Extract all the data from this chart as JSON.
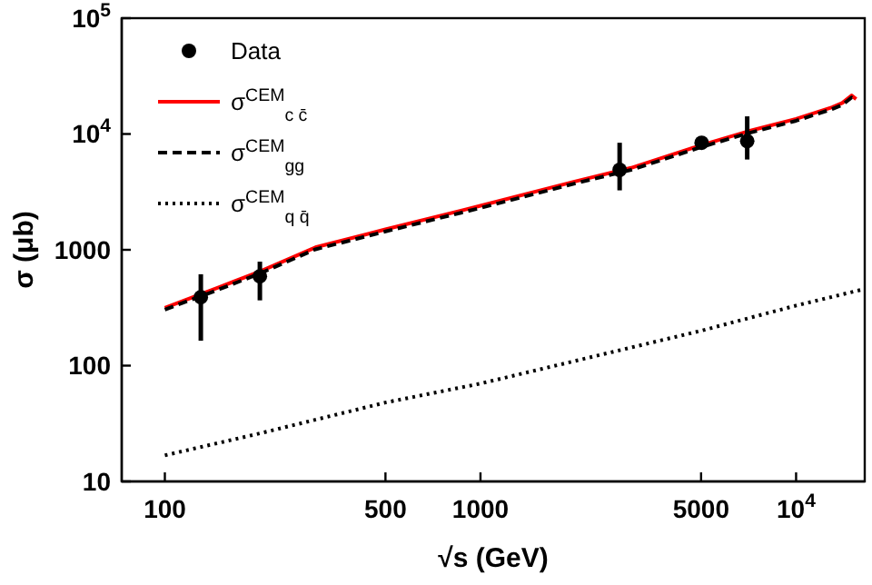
{
  "chart_data": {
    "type": "line",
    "xlabel": "√s (GeV)",
    "ylabel": "σ (μb)",
    "log": "xy",
    "legend": "top left",
    "grid": false,
    "xlim": [
      73,
      16500
    ],
    "xticks": [
      100,
      500,
      1000,
      5000,
      {
        "value": 10000,
        "label": "10$^{4}$"
      }
    ],
    "ylim": [
      10,
      100000
    ],
    "yticks": [
      10,
      100,
      1000,
      {
        "value": 10000,
        "label": "10$^{4}$"
      },
      {
        "value": 100000,
        "label": "10$^{5}$"
      }
    ],
    "series": [
      {
        "name": "Data",
        "type": "scatter",
        "marker": "circle",
        "color": "#000000",
        "x": [
          130,
          200,
          2760,
          5020,
          7000
        ],
        "values": [
          390,
          590,
          4900,
          8400,
          8680
        ],
        "errors": [
          [
            164,
            615
          ],
          [
            366,
            790
          ],
          [
            3260,
            8400
          ],
          [
            7440,
            9400
          ],
          [
            6020,
            14200
          ]
        ]
      },
      {
        "name": "σ$^{CEM}$$_{c c̄}$",
        "line_style": "solid",
        "color": "#ff0000",
        "x": [
          100,
          150,
          200,
          300,
          500,
          1000,
          2000,
          3000,
          5000,
          7000,
          10000,
          13000,
          14000,
          15000,
          15500
        ],
        "values": [
          316,
          480,
          650,
          1050,
          1500,
          2400,
          3900,
          5100,
          8000,
          10500,
          13500,
          17000,
          18500,
          21500,
          20000
        ]
      },
      {
        "name": "σ$^{CEM}$$_{gg}$",
        "line_style": "dashed",
        "color": "#000000",
        "x": [
          100,
          150,
          200,
          300,
          500,
          1000,
          2000,
          3000,
          5000,
          7000,
          10000,
          13000,
          14000,
          15000,
          15500
        ],
        "values": [
          305,
          460,
          625,
          1010,
          1440,
          2300,
          3750,
          4900,
          7700,
          10100,
          13000,
          16400,
          17800,
          20700,
          19300
        ]
      },
      {
        "name": "σ$^{CEM}$$_{q q̄}$",
        "line_style": "dotted",
        "color": "#000000",
        "x": [
          100,
          200,
          500,
          1000,
          2000,
          5000,
          10000,
          16000
        ],
        "values": [
          16.8,
          26,
          48,
          70,
          110,
          200,
          330,
          450
        ]
      }
    ]
  }
}
